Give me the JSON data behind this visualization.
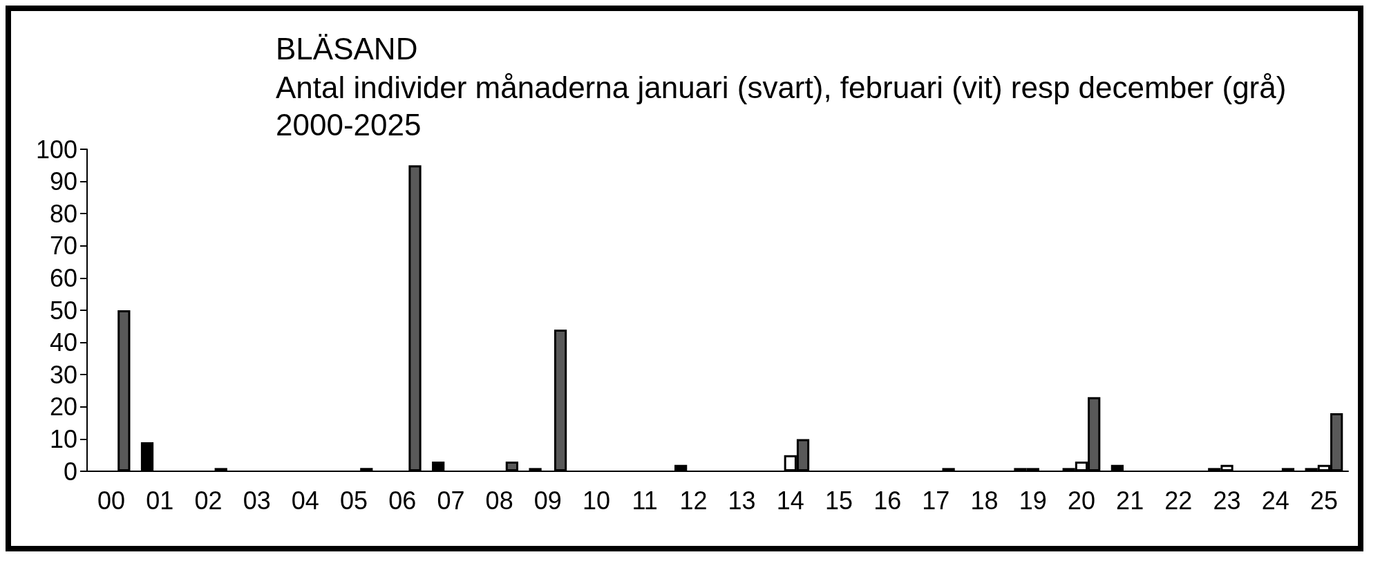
{
  "chart_data": {
    "type": "bar",
    "title": "BLÄSAND",
    "subtitle": "Antal individer månaderna januari (svart), februari (vit) resp december (grå)\n2000-2025",
    "categories": [
      "00",
      "01",
      "02",
      "03",
      "04",
      "05",
      "06",
      "07",
      "08",
      "09",
      "10",
      "11",
      "12",
      "13",
      "14",
      "15",
      "16",
      "17",
      "18",
      "19",
      "20",
      "21",
      "22",
      "23",
      "24",
      "25"
    ],
    "series": [
      {
        "color": "#000000",
        "values": [
          0,
          9,
          0,
          0,
          0,
          0,
          0,
          3,
          0,
          1,
          0,
          0,
          2,
          0,
          0,
          0,
          0,
          0,
          0,
          1,
          1,
          2,
          0,
          1,
          0,
          1
        ]
      },
      {
        "color": "#ffffff",
        "values": [
          0,
          0,
          0,
          0,
          0,
          0,
          0,
          0,
          0,
          0,
          0,
          0,
          0,
          0,
          5,
          0,
          0,
          0,
          0,
          1,
          3,
          0,
          0,
          2,
          0,
          2
        ]
      },
      {
        "color": "#595959",
        "values": [
          50,
          0,
          1,
          0,
          0,
          1,
          95,
          0,
          3,
          44,
          0,
          0,
          0,
          0,
          10,
          0,
          0,
          1,
          0,
          0,
          23,
          0,
          0,
          0,
          1,
          18
        ]
      }
    ],
    "ylim": [
      0,
      100
    ],
    "yticks": [
      0,
      10,
      20,
      30,
      40,
      50,
      60,
      70,
      80,
      90,
      100
    ],
    "grid": false
  }
}
